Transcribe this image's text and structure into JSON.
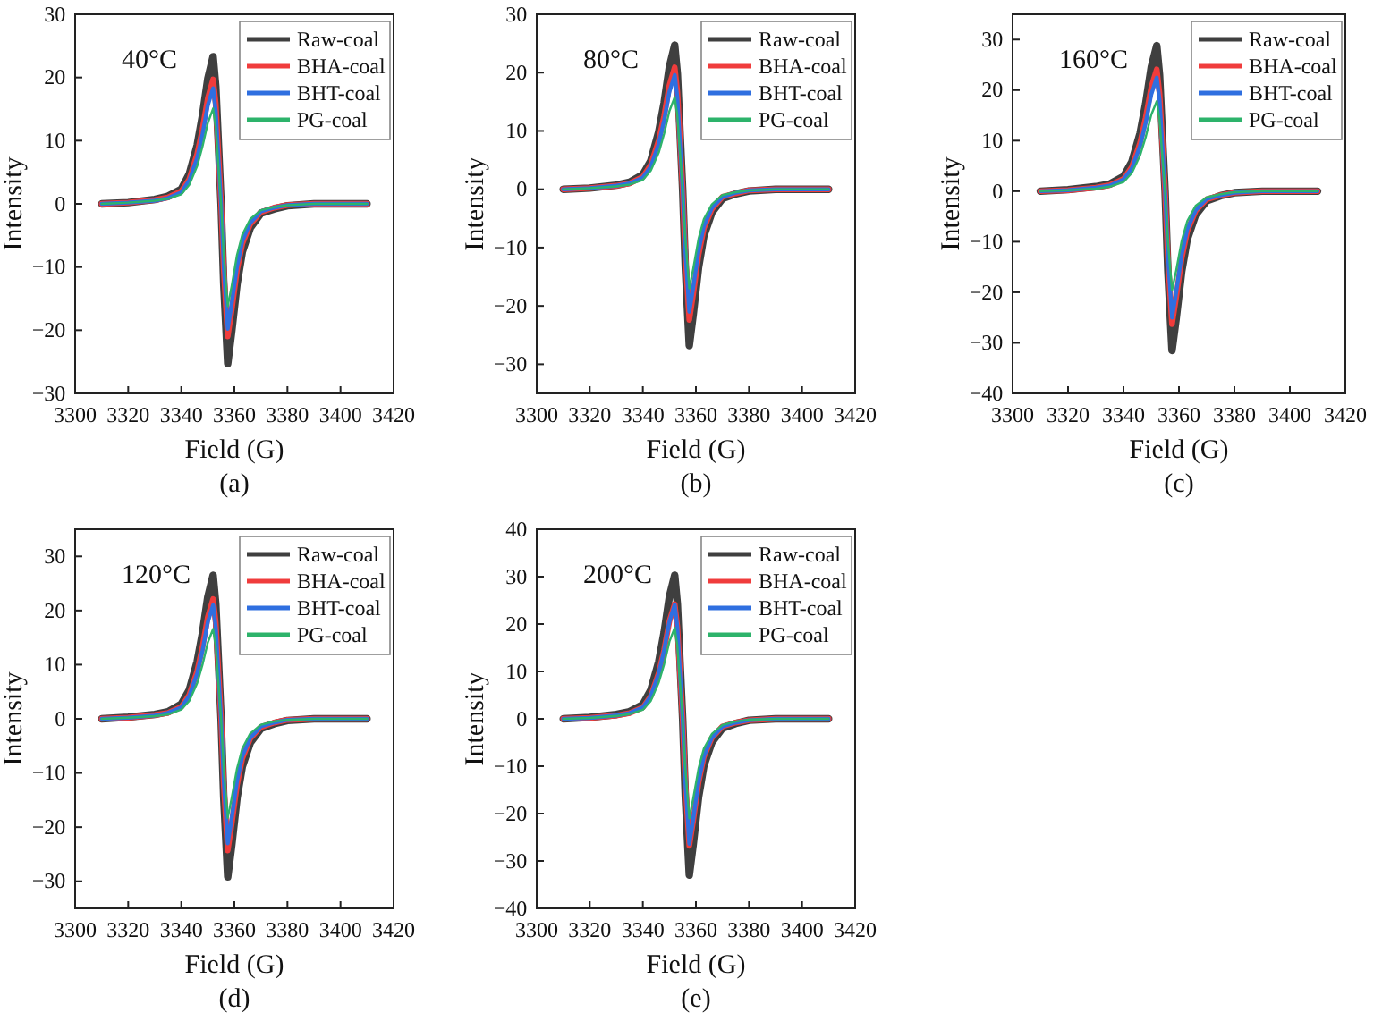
{
  "chart_data": [
    {
      "type": "line",
      "xlabel": "Field (G)",
      "ylabel": "Intensity",
      "annotations": [
        "40°C",
        "(a)"
      ],
      "legend": "top right",
      "line_style": "solid",
      "marker": "none",
      "xlim": [
        3300,
        3420
      ],
      "xticks": [
        3300,
        3320,
        3340,
        3360,
        3380,
        3400,
        3420
      ],
      "ylim": [
        -30,
        30
      ],
      "yticks": [
        -30,
        -20,
        -10,
        0,
        10,
        20,
        30
      ],
      "x": [
        3310,
        3320,
        3330,
        3335,
        3340,
        3343,
        3346,
        3348,
        3350,
        3352,
        3353,
        3354,
        3355,
        3356,
        3357.5,
        3359,
        3361,
        3363,
        3366,
        3370,
        3375,
        3380,
        3390,
        3410
      ],
      "series": [
        {
          "name": "Raw-coal",
          "color": "#3f3f3f",
          "values": [
            0,
            0.2,
            0.7,
            1.2,
            2.3,
            4.7,
            9.3,
            14.0,
            19.8,
            23.3,
            18.6,
            9.3,
            0,
            -12.7,
            -25.3,
            -20.2,
            -12.7,
            -7.6,
            -3.8,
            -1.5,
            -0.8,
            -0.3,
            0,
            0
          ]
        },
        {
          "name": "BHA-coal",
          "color": "#f03c3c",
          "values": [
            0,
            0.2,
            0.6,
            1.0,
            2.0,
            3.9,
            7.9,
            11.8,
            16.7,
            19.7,
            15.8,
            7.9,
            0,
            -10.5,
            -21,
            -16.8,
            -10.5,
            -6.3,
            -3.2,
            -1.3,
            -0.6,
            -0.2,
            0,
            0
          ]
        },
        {
          "name": "BHT-coal",
          "color": "#2f6fe0",
          "values": [
            0,
            0.2,
            0.5,
            0.9,
            1.8,
            3.7,
            7.3,
            11.0,
            15.6,
            18.3,
            14.6,
            7.3,
            0,
            -9.9,
            -19.8,
            -15.8,
            -9.9,
            -5.9,
            -3.0,
            -1.2,
            -0.6,
            -0.2,
            0,
            0
          ]
        },
        {
          "name": "PG-coal",
          "color": "#2db36b",
          "values": [
            0,
            0.2,
            0.5,
            0.8,
            1.5,
            3.0,
            6.0,
            9.1,
            12.8,
            15.1,
            12.1,
            6.0,
            0,
            -8.1,
            -16.2,
            -13.0,
            -8.1,
            -4.9,
            -2.4,
            -1.0,
            -0.5,
            -0.2,
            0,
            0
          ]
        }
      ]
    },
    {
      "type": "line",
      "xlabel": "Field (G)",
      "ylabel": "Intensity",
      "annotations": [
        "80°C",
        "(b)"
      ],
      "legend": "top right",
      "line_style": "solid",
      "marker": "none",
      "xlim": [
        3300,
        3420
      ],
      "xticks": [
        3300,
        3320,
        3340,
        3360,
        3380,
        3400,
        3420
      ],
      "ylim": [
        -35,
        30
      ],
      "yticks": [
        -30,
        -20,
        -10,
        0,
        10,
        20,
        30
      ],
      "x": [
        3310,
        3320,
        3330,
        3335,
        3340,
        3343,
        3346,
        3348,
        3350,
        3352,
        3353,
        3354,
        3355,
        3356,
        3357.5,
        3359,
        3361,
        3363,
        3366,
        3370,
        3375,
        3380,
        3390,
        3410
      ],
      "series": [
        {
          "name": "Raw-coal",
          "color": "#3f3f3f",
          "values": [
            0,
            0.2,
            0.7,
            1.2,
            2.5,
            4.9,
            9.9,
            14.8,
            21.0,
            24.7,
            19.8,
            9.9,
            0,
            -13.4,
            -26.8,
            -21.4,
            -13.4,
            -8.0,
            -4.0,
            -1.6,
            -0.8,
            -0.3,
            0,
            0
          ]
        },
        {
          "name": "BHA-coal",
          "color": "#f03c3c",
          "values": [
            0,
            0.2,
            0.6,
            1.0,
            2.1,
            4.2,
            8.4,
            12.5,
            17.8,
            20.9,
            16.7,
            8.4,
            0,
            -11.2,
            -22.4,
            -17.9,
            -11.2,
            -6.7,
            -3.4,
            -1.3,
            -0.7,
            -0.2,
            0,
            0
          ]
        },
        {
          "name": "BHT-coal",
          "color": "#2f6fe0",
          "values": [
            0,
            0.2,
            0.6,
            1.0,
            2.0,
            3.9,
            7.8,
            11.8,
            16.7,
            19.6,
            15.7,
            7.8,
            0,
            -10.5,
            -21,
            -16.8,
            -10.5,
            -6.3,
            -3.2,
            -1.3,
            -0.6,
            -0.2,
            0,
            0
          ]
        },
        {
          "name": "PG-coal",
          "color": "#2db36b",
          "values": [
            0,
            0.2,
            0.5,
            0.8,
            1.6,
            3.2,
            6.3,
            9.5,
            13.4,
            15.8,
            12.6,
            6.3,
            0,
            -8.5,
            -17,
            -13.6,
            -8.5,
            -5.1,
            -2.6,
            -1.0,
            -0.5,
            -0.2,
            0,
            0
          ]
        }
      ]
    },
    {
      "type": "line",
      "xlabel": "Field (G)",
      "ylabel": "Intensity",
      "annotations": [
        "160°C",
        "(c)"
      ],
      "legend": "top right",
      "line_style": "solid",
      "marker": "none",
      "xlim": [
        3300,
        3420
      ],
      "xticks": [
        3300,
        3320,
        3340,
        3360,
        3380,
        3400,
        3420
      ],
      "ylim": [
        -40,
        35
      ],
      "yticks": [
        -40,
        -30,
        -20,
        -10,
        0,
        10,
        20,
        30
      ],
      "x": [
        3310,
        3320,
        3330,
        3335,
        3340,
        3343,
        3346,
        3348,
        3350,
        3352,
        3353,
        3354,
        3355,
        3356,
        3357.5,
        3359,
        3361,
        3363,
        3366,
        3370,
        3375,
        3380,
        3390,
        3410
      ],
      "series": [
        {
          "name": "Raw-coal",
          "color": "#3f3f3f",
          "values": [
            0,
            0.3,
            0.9,
            1.4,
            2.9,
            5.8,
            11.5,
            17.3,
            24.5,
            28.8,
            23.0,
            11.5,
            0,
            -15.8,
            -31.5,
            -25.2,
            -15.8,
            -9.5,
            -4.7,
            -1.9,
            -0.9,
            -0.3,
            0,
            0
          ]
        },
        {
          "name": "BHA-coal",
          "color": "#f03c3c",
          "values": [
            0,
            0.2,
            0.7,
            1.2,
            2.4,
            4.8,
            9.6,
            14.5,
            20.5,
            24.1,
            19.3,
            9.6,
            0,
            -13.2,
            -26.3,
            -21.0,
            -13.2,
            -7.9,
            -3.9,
            -1.6,
            -0.8,
            -0.3,
            0,
            0
          ]
        },
        {
          "name": "BHT-coal",
          "color": "#2f6fe0",
          "values": [
            0,
            0.2,
            0.7,
            1.1,
            2.3,
            4.5,
            9.0,
            13.5,
            19.1,
            22.5,
            18.0,
            9.0,
            0,
            -12.5,
            -25,
            -20,
            -12.5,
            -7.5,
            -3.8,
            -1.5,
            -0.8,
            -0.3,
            0,
            0
          ]
        },
        {
          "name": "PG-coal",
          "color": "#2db36b",
          "values": [
            0,
            0.2,
            0.5,
            0.9,
            1.8,
            3.6,
            7.1,
            10.7,
            15.1,
            17.8,
            14.2,
            7.1,
            0,
            -9.8,
            -19.6,
            -15.7,
            -9.8,
            -5.9,
            -2.9,
            -1.2,
            -0.6,
            -0.2,
            0,
            0
          ]
        }
      ]
    },
    {
      "type": "line",
      "xlabel": "Field (G)",
      "ylabel": "Intensity",
      "annotations": [
        "120°C",
        "(d)"
      ],
      "legend": "top right",
      "line_style": "solid",
      "marker": "none",
      "xlim": [
        3300,
        3420
      ],
      "xticks": [
        3300,
        3320,
        3340,
        3360,
        3380,
        3400,
        3420
      ],
      "ylim": [
        -35,
        35
      ],
      "yticks": [
        -30,
        -20,
        -10,
        0,
        10,
        20,
        30
      ],
      "x": [
        3310,
        3320,
        3330,
        3335,
        3340,
        3343,
        3346,
        3348,
        3350,
        3352,
        3353,
        3354,
        3355,
        3356,
        3357.5,
        3359,
        3361,
        3363,
        3366,
        3370,
        3375,
        3380,
        3390,
        3410
      ],
      "series": [
        {
          "name": "Raw-coal",
          "color": "#3f3f3f",
          "values": [
            0,
            0.3,
            0.8,
            1.3,
            2.7,
            5.3,
            10.6,
            15.9,
            22.5,
            26.5,
            21.2,
            10.6,
            0,
            -14.6,
            -29.2,
            -23.4,
            -14.6,
            -8.8,
            -4.4,
            -1.8,
            -0.9,
            -0.3,
            0,
            0
          ]
        },
        {
          "name": "BHA-coal",
          "color": "#f03c3c",
          "values": [
            0,
            0.2,
            0.7,
            1.1,
            2.2,
            4.4,
            8.8,
            13.3,
            18.8,
            22.1,
            17.7,
            8.8,
            0,
            -12.2,
            -24.3,
            -19.4,
            -12.2,
            -7.3,
            -3.6,
            -1.5,
            -0.7,
            -0.2,
            0,
            0
          ]
        },
        {
          "name": "BHT-coal",
          "color": "#2f6fe0",
          "values": [
            0,
            0.2,
            0.6,
            1.1,
            2.1,
            4.2,
            8.4,
            12.6,
            17.9,
            21,
            16.8,
            8.4,
            0,
            -11.5,
            -23,
            -18.4,
            -11.5,
            -6.9,
            -3.5,
            -1.4,
            -0.7,
            -0.2,
            0,
            0
          ]
        },
        {
          "name": "PG-coal",
          "color": "#2db36b",
          "values": [
            0,
            0.2,
            0.5,
            0.8,
            1.7,
            3.3,
            6.6,
            10.0,
            14.1,
            16.6,
            13.3,
            6.6,
            0,
            -9.2,
            -18.3,
            -14.6,
            -9.2,
            -5.5,
            -2.7,
            -1.1,
            -0.5,
            -0.2,
            0,
            0
          ]
        }
      ]
    },
    {
      "type": "line",
      "xlabel": "Field (G)",
      "ylabel": "Intensity",
      "annotations": [
        "200°C",
        "(e)"
      ],
      "legend": "top right",
      "line_style": "solid",
      "marker": "none",
      "xlim": [
        3300,
        3420
      ],
      "xticks": [
        3300,
        3320,
        3340,
        3360,
        3380,
        3400,
        3420
      ],
      "ylim": [
        -40,
        40
      ],
      "yticks": [
        -40,
        -30,
        -20,
        -10,
        0,
        10,
        20,
        30,
        40
      ],
      "x": [
        3310,
        3320,
        3330,
        3335,
        3340,
        3343,
        3346,
        3348,
        3350,
        3352,
        3353,
        3354,
        3355,
        3356,
        3357.5,
        3359,
        3361,
        3363,
        3366,
        3370,
        3375,
        3380,
        3390,
        3410
      ],
      "series": [
        {
          "name": "Raw-coal",
          "color": "#3f3f3f",
          "values": [
            0,
            0.3,
            0.9,
            1.5,
            3.0,
            6.1,
            12.1,
            18.2,
            25.8,
            30.3,
            24.2,
            12.1,
            0,
            -16.5,
            -33,
            -26.4,
            -16.5,
            -9.9,
            -5.0,
            -2.0,
            -1.0,
            -0.3,
            0,
            0
          ]
        },
        {
          "name": "BHA-coal",
          "color": "#f03c3c",
          "values": [
            0,
            0.2,
            0.7,
            1.2,
            2.4,
            4.8,
            9.7,
            14.5,
            20.6,
            24.2,
            19.4,
            9.7,
            0,
            -13.4,
            -26.8,
            -21.4,
            -13.4,
            -8.0,
            -4.0,
            -1.6,
            -0.8,
            -0.3,
            0,
            0
          ]
        },
        {
          "name": "BHT-coal",
          "color": "#2f6fe0",
          "values": [
            0,
            0.2,
            0.7,
            1.2,
            2.4,
            4.8,
            9.6,
            14.5,
            20.5,
            24.1,
            19.3,
            9.6,
            0,
            -13.2,
            -26.4,
            -21.1,
            -13.2,
            -7.9,
            -4.0,
            -1.6,
            -0.8,
            -0.3,
            0,
            0
          ]
        },
        {
          "name": "PG-coal",
          "color": "#2db36b",
          "values": [
            0,
            0.2,
            0.6,
            1.0,
            1.9,
            3.8,
            7.7,
            11.5,
            16.3,
            19.2,
            15.4,
            7.7,
            0,
            -10.5,
            -21,
            -16.8,
            -10.5,
            -6.3,
            -3.2,
            -1.3,
            -0.6,
            -0.2,
            0,
            0
          ]
        }
      ]
    }
  ]
}
